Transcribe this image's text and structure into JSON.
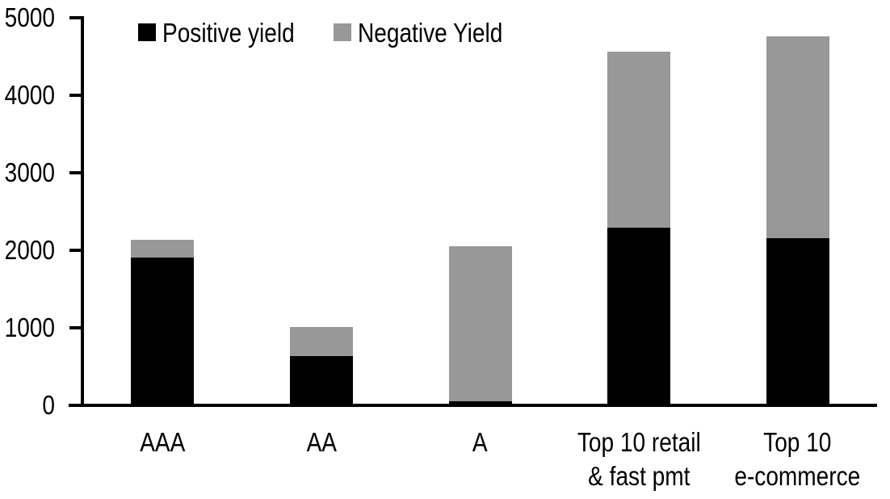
{
  "chart_data": {
    "type": "bar",
    "stacked": true,
    "title": "",
    "xlabel": "",
    "ylabel": "",
    "categories": [
      "AAA",
      "AA",
      "A",
      "Top 10 retail\n& fast pmt",
      "Top 10\ne-commerce"
    ],
    "series": [
      {
        "name": "Positive yield",
        "color": "#000000",
        "values": [
          1900,
          630,
          50,
          2290,
          2160
        ]
      },
      {
        "name": "Negative Yield",
        "color": "#989898",
        "values": [
          230,
          380,
          2000,
          2270,
          2600
        ]
      }
    ],
    "totals": [
      2130,
      1010,
      2050,
      4560,
      4760
    ],
    "ylim": [
      0,
      5000
    ],
    "yticks": [
      0,
      1000,
      2000,
      3000,
      4000,
      5000
    ],
    "grid": false,
    "legend_position": "top",
    "background_color": "#ffffff",
    "axis_color": "#000000"
  }
}
